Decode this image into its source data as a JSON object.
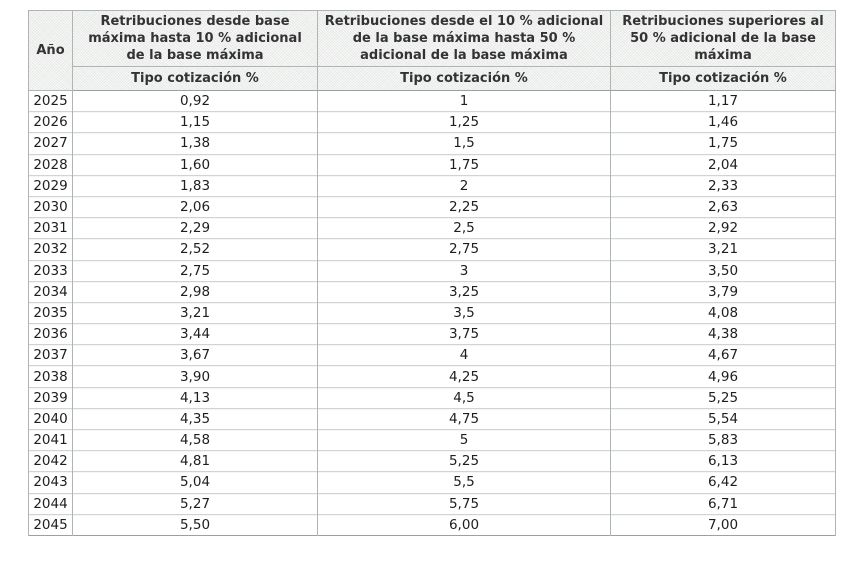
{
  "table": {
    "year_header": "Año",
    "subheader_label": "Tipo cotización %",
    "columns": [
      {
        "title": "Retribuciones desde base máxima hasta 10 % adicional de la base máxima",
        "subtitle": "Tipo cotización %"
      },
      {
        "title": "Retribuciones desde el 10 % adicional de la base máxima hasta 50 % adicional de la base máxima",
        "subtitle": "Tipo cotización %"
      },
      {
        "title": "Retribuciones superiores al 50 % adicional de la base máxima",
        "subtitle": "Tipo cotización %"
      }
    ],
    "rows": [
      {
        "year": "2025",
        "values": [
          "0,92",
          "1",
          "1,17"
        ]
      },
      {
        "year": "2026",
        "values": [
          "1,15",
          "1,25",
          "1,46"
        ]
      },
      {
        "year": "2027",
        "values": [
          "1,38",
          "1,5",
          "1,75"
        ]
      },
      {
        "year": "2028",
        "values": [
          "1,60",
          "1,75",
          "2,04"
        ]
      },
      {
        "year": "2029",
        "values": [
          "1,83",
          "2",
          "2,33"
        ]
      },
      {
        "year": "2030",
        "values": [
          "2,06",
          "2,25",
          "2,63"
        ]
      },
      {
        "year": "2031",
        "values": [
          "2,29",
          "2,5",
          "2,92"
        ]
      },
      {
        "year": "2032",
        "values": [
          "2,52",
          "2,75",
          "3,21"
        ]
      },
      {
        "year": "2033",
        "values": [
          "2,75",
          "3",
          "3,50"
        ]
      },
      {
        "year": "2034",
        "values": [
          "2,98",
          "3,25",
          "3,79"
        ]
      },
      {
        "year": "2035",
        "values": [
          "3,21",
          "3,5",
          "4,08"
        ]
      },
      {
        "year": "2036",
        "values": [
          "3,44",
          "3,75",
          "4,38"
        ]
      },
      {
        "year": "2037",
        "values": [
          "3,67",
          "4",
          "4,67"
        ]
      },
      {
        "year": "2038",
        "values": [
          "3,90",
          "4,25",
          "4,96"
        ]
      },
      {
        "year": "2039",
        "values": [
          "4,13",
          "4,5",
          "5,25"
        ]
      },
      {
        "year": "2040",
        "values": [
          "4,35",
          "4,75",
          "5,54"
        ]
      },
      {
        "year": "2041",
        "values": [
          "4,58",
          "5",
          "5,83"
        ]
      },
      {
        "year": "2042",
        "values": [
          "4,81",
          "5,25",
          "6,13"
        ]
      },
      {
        "year": "2043",
        "values": [
          "5,04",
          "5,5",
          "6,42"
        ]
      },
      {
        "year": "2044",
        "values": [
          "5,27",
          "5,75",
          "6,71"
        ]
      },
      {
        "year": "2045",
        "values": [
          "5,50",
          "6,00",
          "7,00"
        ]
      }
    ]
  },
  "colors": {
    "header-bg": "#f0f1f0",
    "border-outer": "#9aa19e",
    "border-inner": "#b0b5b3",
    "border-row": "#d0d4d2",
    "header-text": "#333333",
    "cell-text": "#1e1e1e",
    "page-bg": "#ffffff"
  }
}
